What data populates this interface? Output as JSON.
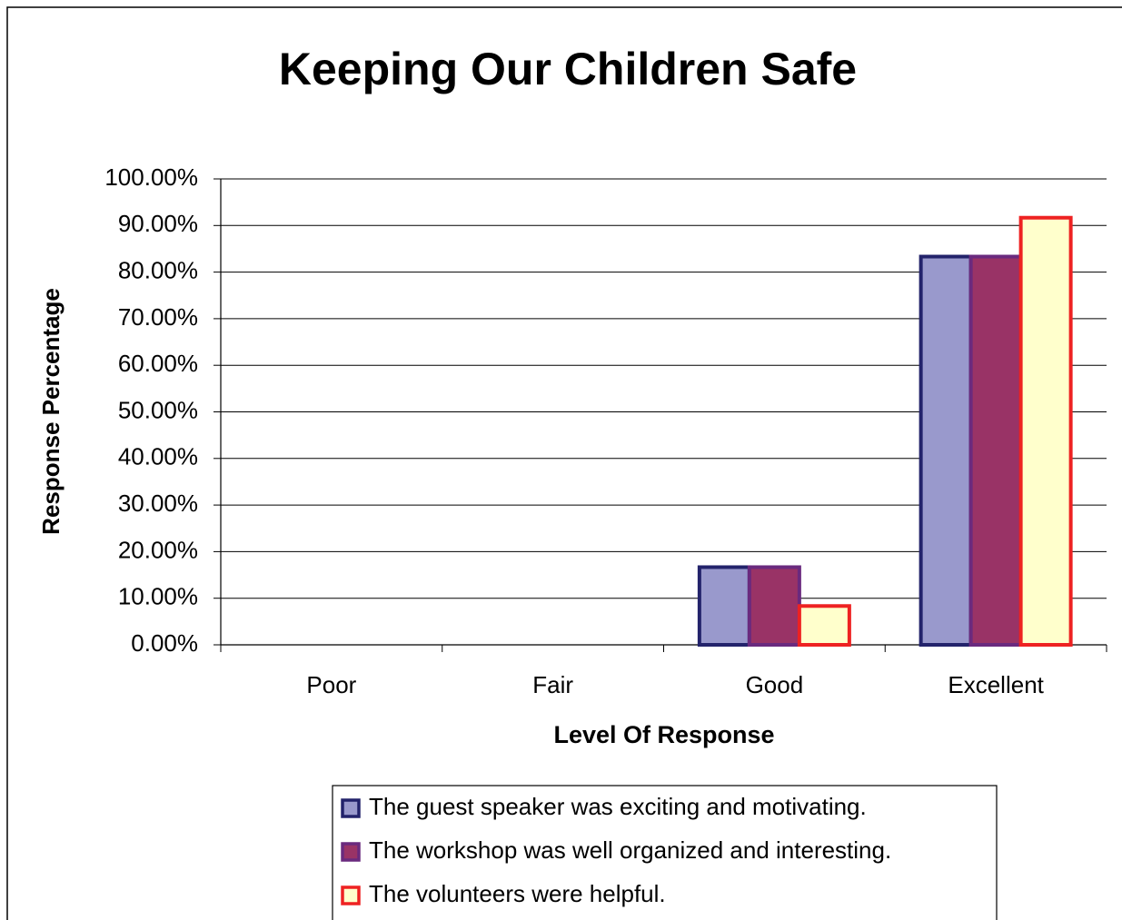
{
  "chart_data": {
    "type": "bar",
    "title": "Keeping Our Children Safe",
    "xlabel": "Level Of Response",
    "ylabel": "Response Percentage",
    "categories": [
      "Poor",
      "Fair",
      "Good",
      "Excellent"
    ],
    "series": [
      {
        "name": "The guest speaker was exciting and motivating.",
        "color": "#9999cc",
        "edgecolor": "#23236b",
        "values": [
          0,
          0,
          16.67,
          83.33
        ]
      },
      {
        "name": "The workshop was well organized and interesting.",
        "color": "#993366",
        "edgecolor": "#6a2a7e",
        "values": [
          0,
          0,
          16.67,
          83.33
        ]
      },
      {
        "name": "The volunteers were helpful.",
        "color": "#ffffcc",
        "edgecolor": "#ee2222",
        "values": [
          0,
          0,
          8.33,
          91.67
        ]
      }
    ],
    "ylim": [
      0,
      100
    ],
    "yticks": [
      {
        "value": 0,
        "label": "0.00%"
      },
      {
        "value": 10,
        "label": "10.00%"
      },
      {
        "value": 20,
        "label": "20.00%"
      },
      {
        "value": 30,
        "label": "30.00%"
      },
      {
        "value": 40,
        "label": "40.00%"
      },
      {
        "value": 50,
        "label": "50.00%"
      },
      {
        "value": 60,
        "label": "60.00%"
      },
      {
        "value": 70,
        "label": "70.00%"
      },
      {
        "value": 80,
        "label": "80.00%"
      },
      {
        "value": 90,
        "label": "90.00%"
      },
      {
        "value": 100,
        "label": "100.00%"
      }
    ],
    "grid": true
  }
}
